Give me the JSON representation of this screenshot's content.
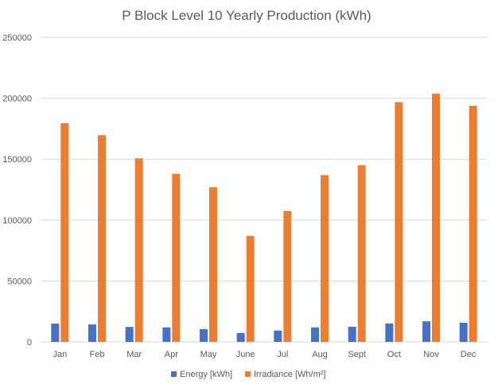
{
  "chart_data": {
    "type": "bar",
    "title": "P Block Level 10 Yearly Production (kWh)",
    "xlabel": "",
    "ylabel": "",
    "categories": [
      "Jan",
      "Feb",
      "Mar",
      "Apr",
      "May",
      "June",
      "Jul",
      "Aug",
      "Sept",
      "Oct",
      "Nov",
      "Dec"
    ],
    "ylim": [
      0,
      250000
    ],
    "yticks": [
      0,
      50000,
      100000,
      150000,
      200000,
      250000
    ],
    "ytick_labels": [
      "0",
      "50000",
      "100000",
      "150000",
      "200000",
      "250000"
    ],
    "grid": true,
    "legend_position": "bottom",
    "series": [
      {
        "name": "Energy [kWh]",
        "color": "#4472c4",
        "values": [
          15000,
          14300,
          12300,
          11900,
          10500,
          7300,
          9300,
          11900,
          12400,
          15100,
          16900,
          15700
        ]
      },
      {
        "name": "Irradiance [Wh/m²]",
        "color": "#ed7d31",
        "values": [
          179500,
          169600,
          150700,
          138000,
          127000,
          87000,
          107500,
          136900,
          145100,
          196800,
          203800,
          193800
        ]
      }
    ]
  }
}
